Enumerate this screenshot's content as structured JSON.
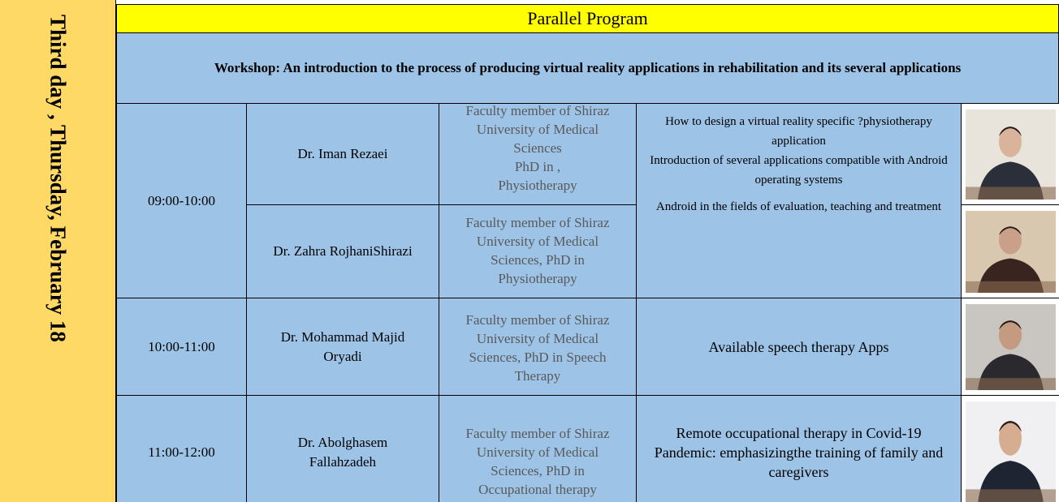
{
  "side_label": "Third day , Thursday, February 18",
  "header": {
    "title": "Parallel Program",
    "workshop": "Workshop: An introduction to the process of producing virtual reality applications in rehabilitation and its several applications"
  },
  "sessions": [
    {
      "time": "09:00-10:00",
      "speakers": [
        {
          "name": "Dr. Iman Rezaei",
          "affiliation": [
            "Faculty member of Shiraz",
            "University of Medical",
            "Sciences",
            "PhD in ,",
            "Physiotherapy"
          ]
        },
        {
          "name": "Dr. Zahra RojhaniShirazi",
          "affiliation": [
            "Faculty member of Shiraz",
            "University of Medical",
            "Sciences, PhD in",
            "Physiotherapy"
          ]
        }
      ],
      "topic": [
        "How to design a virtual reality specific ?physiotherapy application",
        "Introduction of several applications compatible with Android operating systems",
        "Android in the fields of evaluation, teaching and treatment"
      ]
    },
    {
      "time": "10:00-11:00",
      "speakers": [
        {
          "name": "Dr. Mohammad Majid Oryadi",
          "affiliation": [
            "Faculty member of Shiraz",
            "University of Medical",
            "Sciences, PhD in Speech",
            "Therapy"
          ]
        }
      ],
      "topic": [
        "Available speech therapy Apps"
      ]
    },
    {
      "time": "11:00-12:00",
      "speakers": [
        {
          "name": "Dr. Abolghasem Fallahzadeh",
          "affiliation": [
            "Faculty member of Shiraz",
            "University of Medical",
            "Sciences, PhD in",
            "Occupational therapy"
          ]
        }
      ],
      "topic": [
        "Remote occupational therapy in Covid-19 Pandemic: emphasizingthe training of family and caregivers"
      ]
    }
  ]
}
